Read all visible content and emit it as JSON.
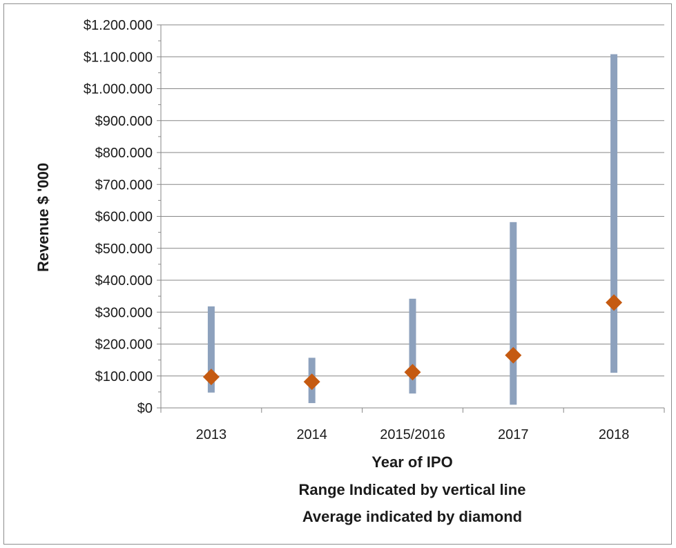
{
  "chart_data": {
    "type": "range",
    "title": "",
    "xlabel": "Year of IPO",
    "xlabel_notes": [
      "Range Indicated by vertical line",
      "Average indicated by diamond"
    ],
    "ylabel": "Revenue $ '000",
    "ylim": [
      0,
      1200000
    ],
    "yticks": [
      0,
      100000,
      200000,
      300000,
      400000,
      500000,
      600000,
      700000,
      800000,
      900000,
      1000000,
      1100000,
      1200000
    ],
    "ytick_labels": [
      "$0",
      "$100.000",
      "$200.000",
      "$300.000",
      "$400.000",
      "$500.000",
      "$600.000",
      "$700.000",
      "$800.000",
      "$900.000",
      "$1.000.000",
      "$1.100.000",
      "$1.200.000"
    ],
    "grid": true,
    "categories": [
      "2013",
      "2014",
      "2015/2016",
      "2017",
      "2018"
    ],
    "series": [
      {
        "name": "Range",
        "low": [
          48000,
          15000,
          45000,
          10000,
          110000
        ],
        "high": [
          318000,
          157000,
          342000,
          582000,
          1108000
        ]
      },
      {
        "name": "Average",
        "values": [
          97000,
          82000,
          112000,
          165000,
          330000
        ]
      }
    ],
    "colors": {
      "range": "#8da1bd",
      "average": "#c55a11",
      "grid": "#868686",
      "axis": "#868686"
    }
  }
}
